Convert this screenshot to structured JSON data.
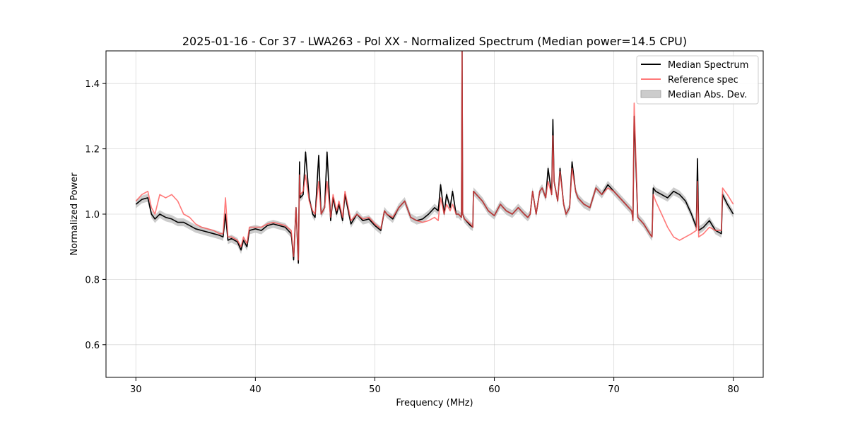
{
  "chart_data": {
    "type": "line",
    "title": "2025-01-16 - Cor 37 - LWA263 - Pol XX - Normalized Spectrum (Median power=14.5 CPU)",
    "xlabel": "Frequency (MHz)",
    "ylabel": "Normalized Power",
    "xlim": [
      27.5,
      82.5
    ],
    "ylim": [
      0.5,
      1.5
    ],
    "xticks": [
      30,
      40,
      50,
      60,
      70,
      80
    ],
    "yticks": [
      0.6,
      0.8,
      1.0,
      1.2,
      1.4
    ],
    "grid": true,
    "legend_position": "top-right",
    "colors": {
      "median": "#000000",
      "reference": "#ff4d4d",
      "mad": "#bfbfbf"
    },
    "series": [
      {
        "name": "Median Spectrum",
        "style": "line",
        "x": [
          30.0,
          30.5,
          31.0,
          31.3,
          31.6,
          32.0,
          32.5,
          33.0,
          33.5,
          34.0,
          34.5,
          35.0,
          35.5,
          36.0,
          36.5,
          37.0,
          37.3,
          37.5,
          37.7,
          38.0,
          38.5,
          38.8,
          39.0,
          39.3,
          39.5,
          40.0,
          40.5,
          41.0,
          41.5,
          42.0,
          42.5,
          43.0,
          43.2,
          43.4,
          43.6,
          43.7,
          43.75,
          44.0,
          44.2,
          44.5,
          44.8,
          45.0,
          45.3,
          45.5,
          45.8,
          46.0,
          46.3,
          46.5,
          46.8,
          47.0,
          47.3,
          47.5,
          48.0,
          48.5,
          49.0,
          49.5,
          50.0,
          50.5,
          50.8,
          51.0,
          51.5,
          52.0,
          52.5,
          53.0,
          53.5,
          54.0,
          54.5,
          55.0,
          55.3,
          55.5,
          55.8,
          56.0,
          56.3,
          56.5,
          56.8,
          57.0,
          57.25,
          57.3,
          57.35,
          57.5,
          58.0,
          58.2,
          58.25,
          59.0,
          59.5,
          60.0,
          60.5,
          61.0,
          61.5,
          62.0,
          62.5,
          62.8,
          63.0,
          63.2,
          63.5,
          63.8,
          64.0,
          64.3,
          64.5,
          64.8,
          64.9,
          65.0,
          65.3,
          65.5,
          65.8,
          66.0,
          66.3,
          66.5,
          66.8,
          67.0,
          67.5,
          68.0,
          68.5,
          69.0,
          69.5,
          70.0,
          70.5,
          71.0,
          71.5,
          71.6,
          71.7,
          72.0,
          72.5,
          73.0,
          73.2,
          73.3,
          73.5,
          74.0,
          74.5,
          75.0,
          75.5,
          76.0,
          76.5,
          76.9,
          77.0,
          77.1,
          77.5,
          78.0,
          78.5,
          79.0,
          79.1,
          79.5,
          80.0
        ],
        "y": [
          1.03,
          1.045,
          1.05,
          1.0,
          0.985,
          1.0,
          0.99,
          0.985,
          0.975,
          0.975,
          0.965,
          0.955,
          0.95,
          0.945,
          0.94,
          0.935,
          0.93,
          1.0,
          0.92,
          0.925,
          0.915,
          0.89,
          0.92,
          0.9,
          0.95,
          0.955,
          0.95,
          0.965,
          0.97,
          0.965,
          0.96,
          0.94,
          0.86,
          1.02,
          0.85,
          1.16,
          1.05,
          1.06,
          1.19,
          1.05,
          1.0,
          0.99,
          1.18,
          1.0,
          1.02,
          1.19,
          0.98,
          1.05,
          1.0,
          1.03,
          0.98,
          1.06,
          0.97,
          1.0,
          0.98,
          0.985,
          0.965,
          0.95,
          1.01,
          1.0,
          0.985,
          1.02,
          1.04,
          0.99,
          0.98,
          0.985,
          1.0,
          1.02,
          1.01,
          1.09,
          1.0,
          1.06,
          1.02,
          1.07,
          1.0,
          1.0,
          0.99,
          1.5,
          1.0,
          0.985,
          0.965,
          0.96,
          1.07,
          1.04,
          1.01,
          0.995,
          1.03,
          1.01,
          1.0,
          1.02,
          1.0,
          0.99,
          1.0,
          1.07,
          1.0,
          1.07,
          1.08,
          1.05,
          1.14,
          1.06,
          1.29,
          1.1,
          1.04,
          1.14,
          1.03,
          1.0,
          1.02,
          1.16,
          1.07,
          1.05,
          1.03,
          1.02,
          1.08,
          1.06,
          1.09,
          1.07,
          1.05,
          1.03,
          1.01,
          0.98,
          1.3,
          0.99,
          0.97,
          0.94,
          0.93,
          1.08,
          1.07,
          1.06,
          1.05,
          1.07,
          1.06,
          1.04,
          1.0,
          0.96,
          1.17,
          0.95,
          0.96,
          0.98,
          0.95,
          0.94,
          1.06,
          1.03,
          1.0
        ]
      },
      {
        "name": "Reference spec",
        "style": "line",
        "x": [
          30.0,
          30.5,
          31.0,
          31.3,
          31.6,
          32.0,
          32.5,
          33.0,
          33.5,
          34.0,
          34.5,
          35.0,
          35.5,
          36.0,
          36.5,
          37.0,
          37.3,
          37.5,
          37.7,
          38.0,
          38.5,
          38.8,
          39.0,
          39.3,
          39.5,
          40.0,
          40.5,
          41.0,
          41.5,
          42.0,
          42.5,
          43.0,
          43.2,
          43.4,
          43.6,
          43.7,
          43.75,
          44.0,
          44.2,
          44.5,
          44.8,
          45.0,
          45.3,
          45.5,
          45.8,
          46.0,
          46.3,
          46.5,
          46.8,
          47.0,
          47.3,
          47.5,
          48.0,
          48.5,
          49.0,
          49.5,
          50.0,
          50.5,
          50.8,
          51.0,
          51.5,
          52.0,
          52.5,
          53.0,
          53.5,
          54.0,
          54.5,
          55.0,
          55.3,
          55.5,
          55.8,
          56.0,
          56.3,
          56.5,
          56.8,
          57.0,
          57.25,
          57.3,
          57.35,
          57.5,
          58.0,
          58.2,
          58.25,
          59.0,
          59.5,
          60.0,
          60.5,
          61.0,
          61.5,
          62.0,
          62.5,
          62.8,
          63.0,
          63.2,
          63.5,
          63.8,
          64.0,
          64.3,
          64.5,
          64.8,
          64.9,
          65.0,
          65.3,
          65.5,
          65.8,
          66.0,
          66.3,
          66.5,
          66.8,
          67.0,
          67.5,
          68.0,
          68.5,
          69.0,
          69.5,
          70.0,
          70.5,
          71.0,
          71.5,
          71.6,
          71.7,
          72.0,
          72.5,
          73.0,
          73.2,
          73.3,
          73.5,
          74.0,
          74.5,
          75.0,
          75.5,
          76.0,
          76.5,
          76.9,
          77.0,
          77.1,
          77.5,
          78.0,
          78.5,
          79.0,
          79.1,
          79.5,
          80.0
        ],
        "y": [
          1.04,
          1.06,
          1.07,
          1.02,
          1.0,
          1.06,
          1.05,
          1.06,
          1.04,
          1.0,
          0.99,
          0.97,
          0.96,
          0.955,
          0.95,
          0.94,
          0.94,
          1.05,
          0.93,
          0.93,
          0.92,
          0.9,
          0.93,
          0.91,
          0.96,
          0.96,
          0.96,
          0.97,
          0.975,
          0.97,
          0.965,
          0.95,
          0.87,
          1.02,
          0.86,
          1.12,
          1.06,
          1.07,
          1.12,
          1.04,
          1.01,
          1.0,
          1.1,
          1.0,
          1.02,
          1.1,
          0.99,
          1.06,
          1.01,
          1.04,
          0.99,
          1.07,
          0.98,
          1.0,
          0.985,
          0.99,
          0.97,
          0.955,
          1.01,
          1.0,
          0.99,
          1.02,
          1.04,
          0.99,
          0.98,
          0.975,
          0.98,
          0.99,
          0.98,
          1.05,
          1.0,
          1.03,
          1.01,
          1.03,
          1.0,
          1.0,
          0.99,
          1.5,
          1.0,
          0.985,
          0.97,
          0.96,
          1.07,
          1.04,
          1.01,
          0.995,
          1.03,
          1.01,
          1.0,
          1.02,
          1.0,
          0.99,
          1.0,
          1.07,
          1.0,
          1.07,
          1.08,
          1.05,
          1.1,
          1.06,
          1.24,
          1.1,
          1.04,
          1.13,
          1.03,
          1.0,
          1.02,
          1.14,
          1.07,
          1.05,
          1.03,
          1.02,
          1.08,
          1.06,
          1.08,
          1.07,
          1.05,
          1.03,
          1.01,
          0.98,
          1.34,
          0.99,
          0.97,
          0.94,
          0.93,
          1.06,
          1.04,
          1.0,
          0.96,
          0.93,
          0.92,
          0.93,
          0.94,
          0.95,
          1.1,
          0.93,
          0.94,
          0.96,
          0.95,
          0.95,
          1.08,
          1.06,
          1.03
        ]
      },
      {
        "name": "Median Abs. Dev.",
        "style": "band",
        "half_width": 0.012
      }
    ]
  }
}
